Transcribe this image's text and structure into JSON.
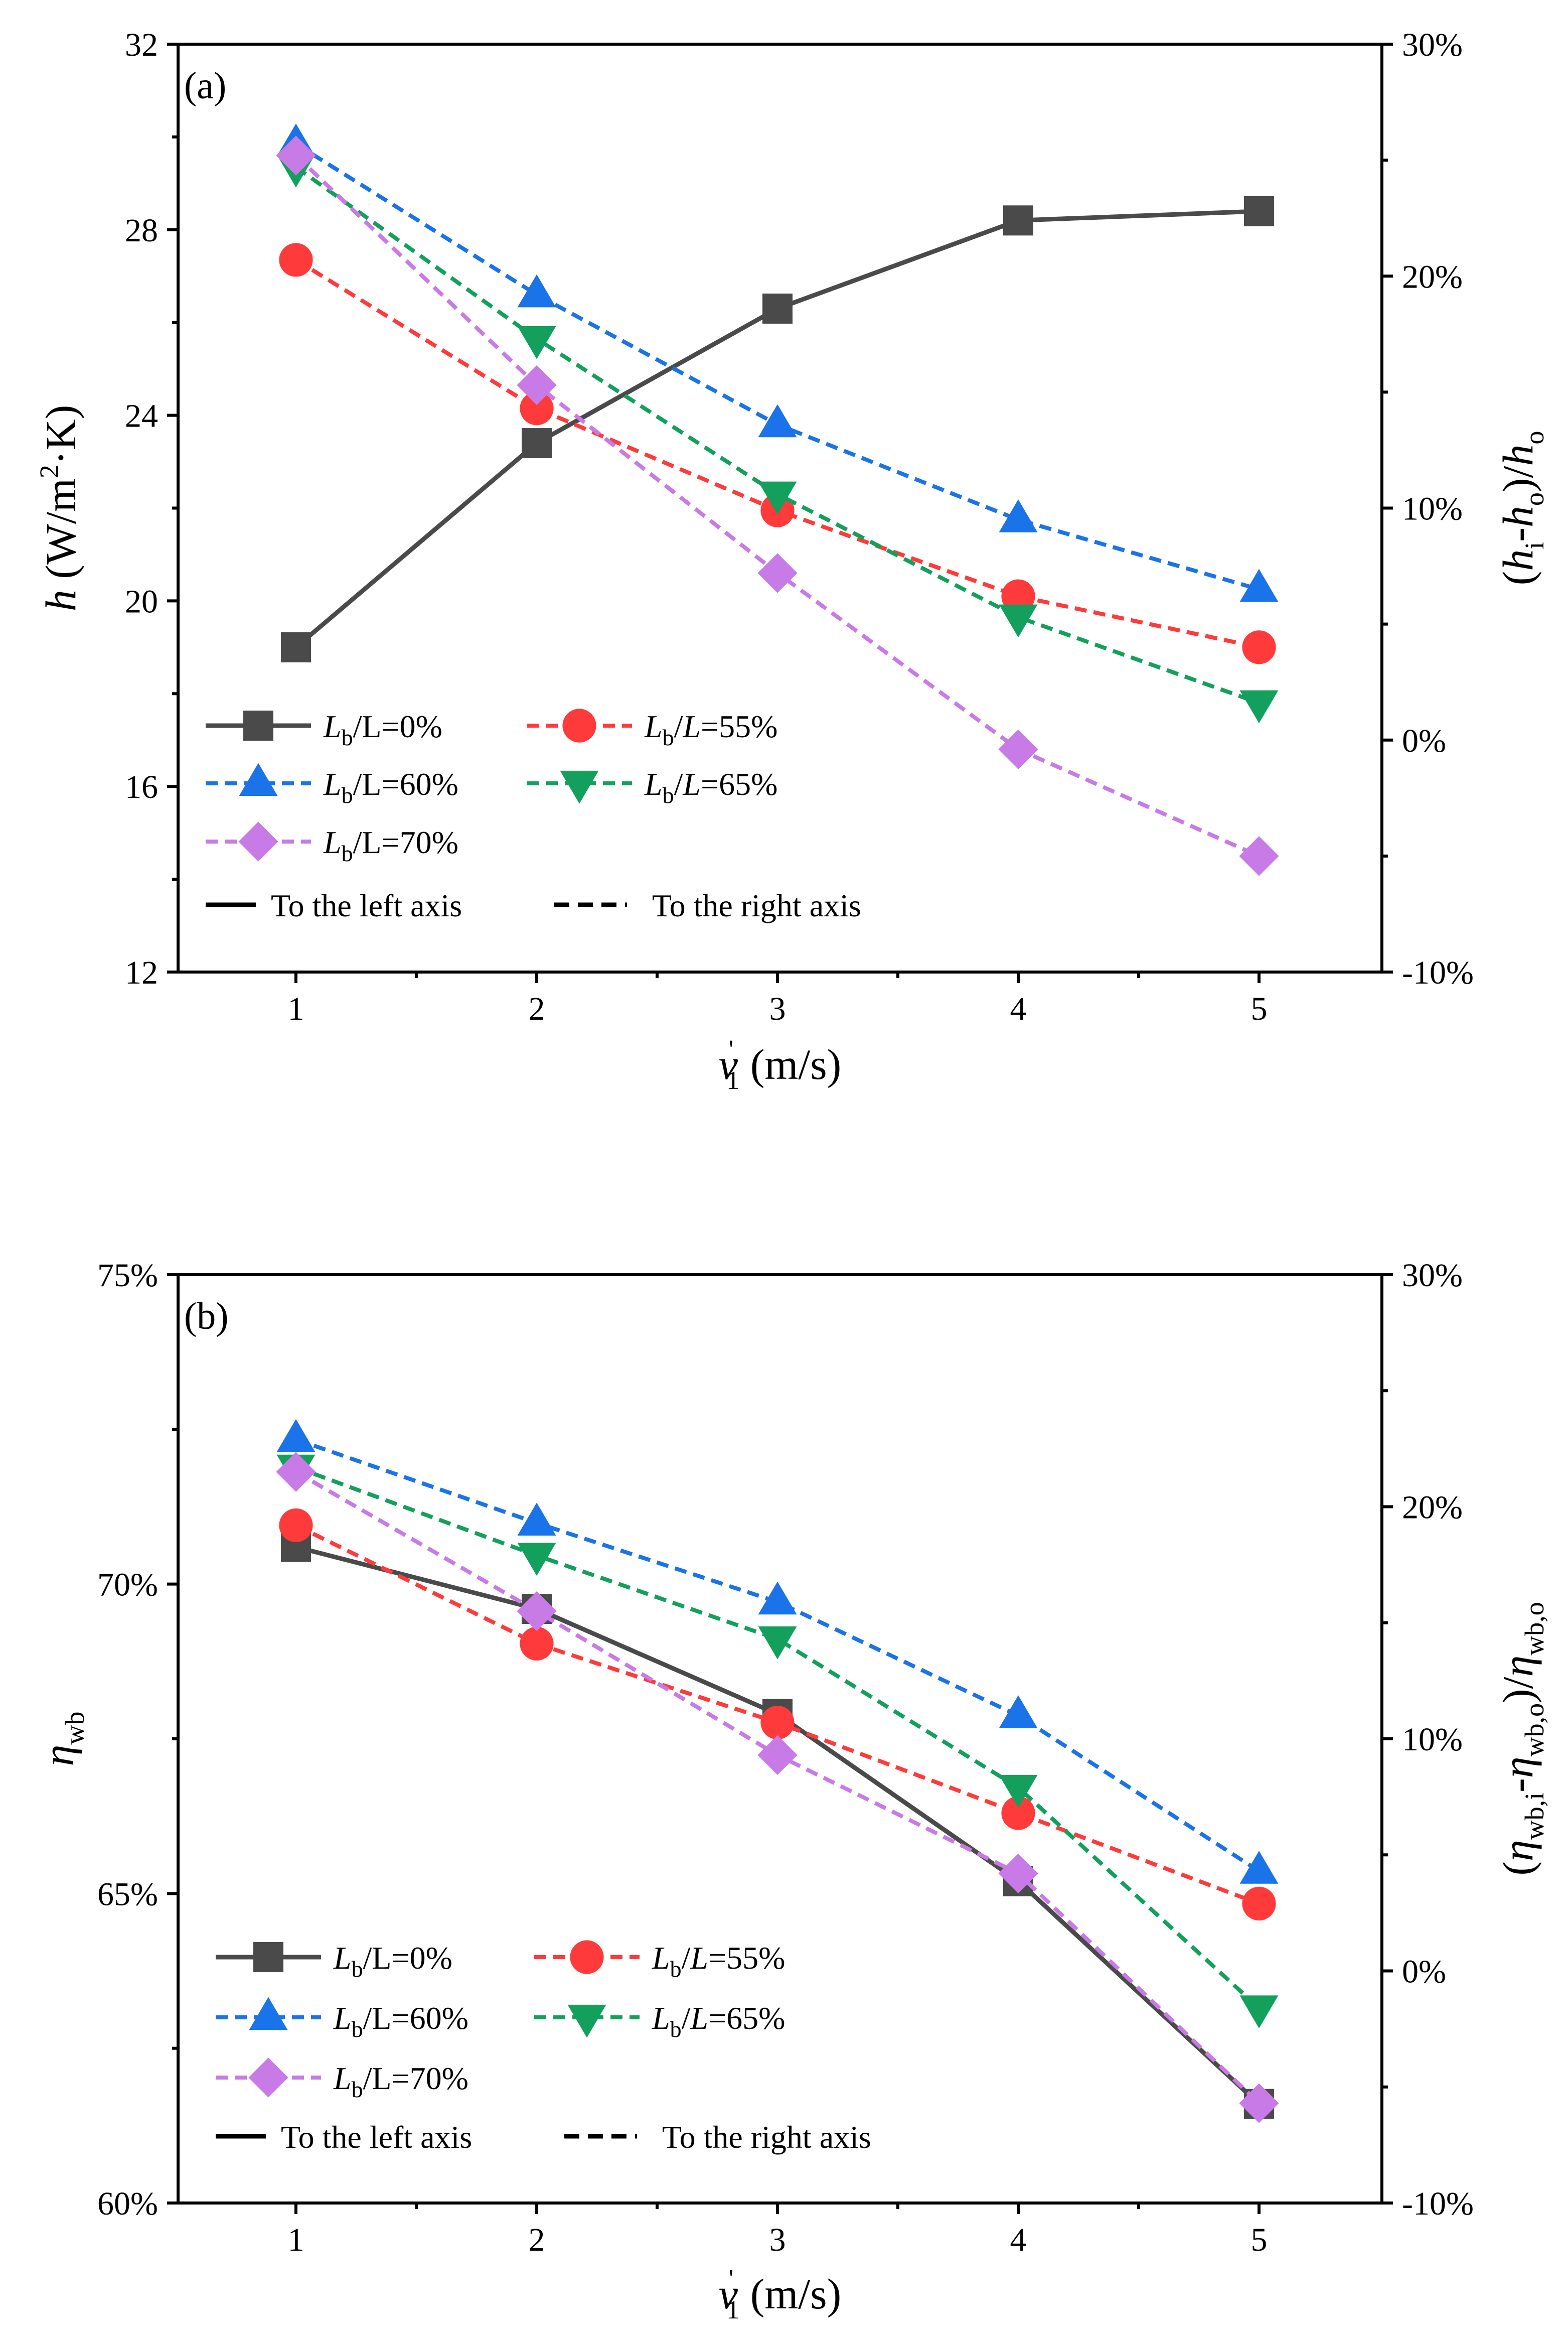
{
  "chart_data": [
    {
      "type": "line",
      "panel_label": "(a)",
      "x": [
        1,
        2,
        3,
        4,
        5
      ],
      "xticks": [
        "1",
        "2",
        "3",
        "4",
        "5"
      ],
      "xlabel": {
        "main": "v",
        "sup": "'",
        "sub": "1",
        "unit": "(m/s)"
      },
      "ylabel_left": {
        "var": "h",
        "unit": "(W/m",
        "sup": "2",
        "rest": "·K)"
      },
      "ylabel_right": {
        "p1": "(",
        "v1": "h",
        "s1": "i",
        "p2": "-",
        "v2": "h",
        "s2": "o",
        "p3": ")/",
        "v3": "h",
        "s3": "o"
      },
      "ylim_left": [
        12,
        32
      ],
      "yticks_left": [
        "12",
        "16",
        "20",
        "24",
        "28",
        "32"
      ],
      "ylim_right": [
        -10,
        30
      ],
      "yticks_right": [
        "-10%",
        "0%",
        "10%",
        "20%",
        "30%"
      ],
      "series": [
        {
          "name": "Lb/L=0%",
          "legend": {
            "a": "L",
            "b": "b",
            "c": "/L=0%"
          },
          "axis": "left",
          "marker": "square",
          "color": "#4a4a4a",
          "dash": "solid",
          "values": [
            19.0,
            23.4,
            26.3,
            28.2,
            28.4
          ]
        },
        {
          "name": "Lb/L=55%",
          "legend": {
            "a": "L",
            "b": "b",
            "c": "/",
            "d": "L",
            "e": "=55%"
          },
          "axis": "right",
          "marker": "circle",
          "color": "#ff3a3a",
          "dash": "dash",
          "values": [
            20.7,
            14.3,
            9.9,
            6.2,
            4.0
          ]
        },
        {
          "name": "Lb/L=60%",
          "legend": {
            "a": "L",
            "b": "b",
            "c": "/L=60%"
          },
          "axis": "right",
          "marker": "triangle-up",
          "color": "#1a73e8",
          "dash": "dash",
          "values": [
            25.7,
            19.2,
            13.6,
            9.5,
            6.5
          ]
        },
        {
          "name": "Lb/L=65%",
          "legend": {
            "a": "L",
            "b": "b",
            "c": "/",
            "d": "L",
            "e": "=65%"
          },
          "axis": "right",
          "marker": "triangle-down",
          "color": "#13a05c",
          "dash": "dash",
          "values": [
            24.7,
            17.3,
            10.6,
            5.3,
            1.6
          ]
        },
        {
          "name": "Lb/L=70%",
          "legend": {
            "a": "L",
            "b": "b",
            "c": "/L=70%"
          },
          "axis": "right",
          "marker": "diamond",
          "color": "#c87ae6",
          "dash": "dash",
          "values": [
            25.2,
            15.3,
            7.2,
            -0.4,
            -5.0
          ]
        }
      ],
      "line_legend": {
        "solid": "To the left axis",
        "dashed": "To the right axis"
      }
    },
    {
      "type": "line",
      "panel_label": "(b)",
      "x": [
        1,
        2,
        3,
        4,
        5
      ],
      "xticks": [
        "1",
        "2",
        "3",
        "4",
        "5"
      ],
      "xlabel": {
        "main": "v",
        "sup": "'",
        "sub": "1",
        "unit": "(m/s)"
      },
      "ylabel_left": {
        "var": "η",
        "sub": "wb"
      },
      "ylabel_right": {
        "p1": "(",
        "v1": "η",
        "s1": "wb,i",
        "p2": "-",
        "v2": "η",
        "s2": "wb,o",
        "p3": ")/",
        "v3": "η",
        "s3": "wb,o"
      },
      "ylim_left": [
        60,
        75
      ],
      "yticks_left": [
        "60%",
        "65%",
        "70%",
        "75%"
      ],
      "ylim_right": [
        -10,
        30
      ],
      "yticks_right": [
        "-10%",
        "0%",
        "10%",
        "20%",
        "30%"
      ],
      "series": [
        {
          "name": "Lb/L=0%",
          "legend": {
            "a": "L",
            "b": "b",
            "c": "/L=0%"
          },
          "axis": "left",
          "marker": "square",
          "color": "#4a4a4a",
          "dash": "solid",
          "values": [
            70.6,
            69.6,
            67.9,
            65.2,
            61.6
          ]
        },
        {
          "name": "Lb/L=55%",
          "legend": {
            "a": "L",
            "b": "b",
            "c": "/",
            "d": "L",
            "e": "=55%"
          },
          "axis": "right",
          "marker": "circle",
          "color": "#ff3a3a",
          "dash": "dash",
          "values": [
            19.2,
            14.1,
            10.7,
            6.8,
            2.9
          ]
        },
        {
          "name": "Lb/L=60%",
          "legend": {
            "a": "L",
            "b": "b",
            "c": "/L=60%"
          },
          "axis": "right",
          "marker": "triangle-up",
          "color": "#1a73e8",
          "dash": "dash",
          "values": [
            22.9,
            19.3,
            15.9,
            11.0,
            4.3
          ]
        },
        {
          "name": "Lb/L=65%",
          "legend": {
            "a": "L",
            "b": "b",
            "c": "/",
            "d": "L",
            "e": "=65%"
          },
          "axis": "right",
          "marker": "triangle-down",
          "color": "#13a05c",
          "dash": "dash",
          "values": [
            21.7,
            17.9,
            14.3,
            7.9,
            -1.6
          ]
        },
        {
          "name": "Lb/L=70%",
          "legend": {
            "a": "L",
            "b": "b",
            "c": "/L=70%"
          },
          "axis": "right",
          "marker": "diamond",
          "color": "#c87ae6",
          "dash": "dash",
          "values": [
            21.5,
            15.5,
            9.3,
            4.2,
            -5.7
          ]
        }
      ],
      "line_legend": {
        "solid": "To the left axis",
        "dashed": "To the right axis"
      }
    }
  ]
}
